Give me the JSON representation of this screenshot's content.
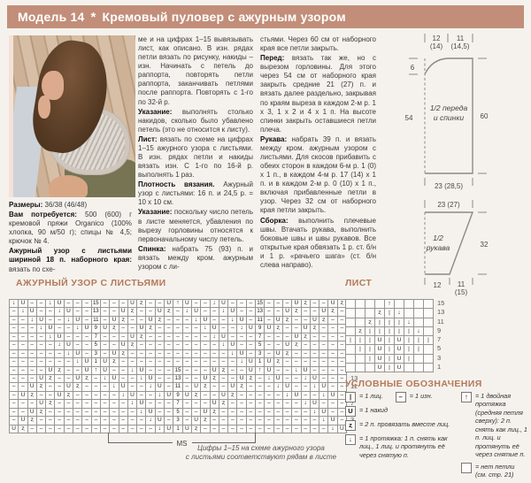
{
  "header": {
    "model": "Модель 14",
    "separator": "*",
    "title": "Кремовый пуловер с ажурным узором"
  },
  "columns": {
    "col1": [
      {
        "b": "Размеры:",
        "t": " 36/38 (46/48)"
      },
      {
        "b": "Вам потребуется:",
        "t": " 500 (600) г кремовой пряжи Organico (100% хлопка, 90 м/50 г); спицы № 4,5; крючок № 4."
      },
      {
        "b": "Ажурный узор с листьями шириной 18 п. наборного края:",
        "t": " вязать по схе-"
      }
    ],
    "col2": [
      {
        "b": "",
        "t": "ме и на цифрах 1–15 вывязывать лист, как описано. В изн. рядах петли вязать по рисунку, накиды – изн. Начинать с петель до раппорта, повторять петли раппорта, заканчивать петлями после раппорта. Повторять с 1-го по 32-й р."
      },
      {
        "b": "Указание:",
        "t": " выполнять столько накидов, сколько было убавлено петель (это не относится к листу)."
      },
      {
        "b": "Лист:",
        "t": " вязать по схеме на цифрах 1–15 ажурного узора с листьями. В изн. рядах петли и накиды вязать изн. С 1-го по 16-й р. выполнять 1 раз."
      },
      {
        "b": "Плотность вязания.",
        "t": " Ажурный узор с листьями: 16 п. и 24,5 р. = 10 x 10 см."
      },
      {
        "b": "Указание:",
        "t": " поскольку число петель в листе меняется, убавления по вырезу горловины относятся к первоначальному числу петель."
      },
      {
        "b": "Спинка:",
        "t": " набрать 75 (93) п. и вязать между кром. ажурным узором с ли-"
      }
    ],
    "col3": [
      {
        "b": "",
        "t": "стьями. Через 60 см от наборного края все петли закрыть."
      },
      {
        "b": "Перед:",
        "t": " вязать так же, но с вырезом горловины. Для этого через 54 см от наборного края закрыть средние 21 (27) п. и вязать далее раздельно, закрывая по краям выреза в каждом 2-м р. 1 x 3, 1 x 2 и 4 x 1 п. На высоте спинки закрыть оставшиеся петли плеча."
      },
      {
        "b": "Рукава:",
        "t": " набрать 39 п. и вязать между кром. ажурным узором с листьями. Для скосов прибавить с обеих сторон в каждом 6-м р. 1 (0) x 1 п., в каждом 4-м р. 17 (14) x 1 п. и в каждом 2-м р. 0 (10) x 1 п., включая прибавленные петли в узор. Через 32 см от наборного края петли закрыть."
      },
      {
        "b": "Сборка:",
        "t": " выполнить плечевые швы. Втачать рукава, выполнить боковые швы и швы рукавов. Все открытые края обвязать 1 р. ст. б/н и 1 р. «рачьего шага» (ст. б/н слева направо)."
      }
    ]
  },
  "schematic_front": {
    "label_line1": "1/2 переда",
    "label_line2": "и спинки",
    "top_left_val": "12",
    "top_left_alt": "(14)",
    "top_right_val": "11",
    "top_right_alt": "(14,5)",
    "neck_depth": "6",
    "left_height": "54",
    "right_height": "60",
    "bottom_width": "23 (28,5)"
  },
  "schematic_sleeve": {
    "label_line1": "1/2",
    "label_line2": "рукава",
    "top_width": "23 (27)",
    "right_height": "32",
    "bottom_left": "12",
    "bottom_right_val": "11",
    "bottom_right_alt": "(15)"
  },
  "main_chart": {
    "heading": "АЖУРНЫЙ УЗОР С ЛИСТЬЯМИ",
    "row_numbers": [
      31,
      29,
      27,
      25,
      23,
      21,
      19,
      17,
      15,
      13,
      11,
      9,
      7,
      5,
      3,
      1
    ],
    "rows": [
      "vU--vU---A---U2--U^U--vU---A---U2--U2",
      "-vU--vU--B--U2--U2-vU--vU--B--U2--U2-",
      "--vU--vU-C-U2--U2---vU--vU-C-U2--U2--",
      "---vU--vUDU2--U2-----vU--vUDU2--U2---",
      "----vU---E---U2-------vU---E---U2----",
      "-----vU--F--U2---------vU--F--U2-----",
      "------vU-G-U2-----------vU-G-U2------",
      "-------vUHU2-------------vUHU2-------",
      "----U2--U^U--vU---A---U2--U^U--vU----",
      "---U2--U2-vU--vU--B--U2--U2-vU--vU---",
      "--U2--U2---vU--vU-C-U2--U2---vU--vU--",
      "-U2--U2-----vU--vUDU2--U2-----vU--vU-",
      "---U2--------vU---E---U2--------vU---",
      "--U2----------vU--F--U2----------vU--",
      "-U2------------vU-G-U2------------vU-",
      "U2--------------vUHU2--------------vU"
    ],
    "rapport_label": "MS",
    "caption_line1": "Цифры 1–15 на схеме ажурного узора",
    "caption_line2": "с листьями соответствуют рядам в листе"
  },
  "leaf_chart": {
    "heading": "ЛИСТ",
    "row_numbers": [
      15,
      13,
      11,
      9,
      7,
      5,
      3,
      1
    ],
    "rows": [
      "....^....",
      "...2|v...",
      "..2|||v..",
      ".2|||||v.",
      "|||U|U|||",
      ".||U|U||.",
      "..|U|U|..",
      "...U|U..."
    ]
  },
  "legend": {
    "heading": "УСЛОВНЫЕ ОБОЗНАЧЕНИЯ",
    "items_left": [
      {
        "sym": "|",
        "text": "= 1 лиц.",
        "pair_sym": "–",
        "pair_text": "= 1 изн."
      },
      {
        "sym": "U",
        "text": "= 1 накид"
      },
      {
        "sym": "ȥ",
        "text": "= 2 п. провязать вместе лиц."
      },
      {
        "sym": "↓",
        "text": "= 1 протяжка: 1 п. снять как лиц., 1 лиц. и протянуть её через снятую п."
      }
    ],
    "items_right": [
      {
        "sym": "↑",
        "text": "= 1 двойная протяжка (средняя петля сверху): 2 п. снять как лиц., 1 п. лиц. и протянуть её через снятые п."
      },
      {
        "sym": "",
        "text": "= нет петли (см. стр. 21)"
      }
    ]
  },
  "symbol_map": {
    "v": "↓",
    "U": "U",
    "-": "–",
    "2": "ȥ",
    "^": "↑",
    "|": "|",
    ".": "",
    "A": "15",
    "B": "13",
    "C": "11",
    "D": "9",
    "E": "7",
    "F": "5",
    "G": "3",
    "H": "1"
  },
  "colors": {
    "header_bg": "#c28e79",
    "heading": "#b5795a",
    "page_bg": "#f5f2ed"
  }
}
